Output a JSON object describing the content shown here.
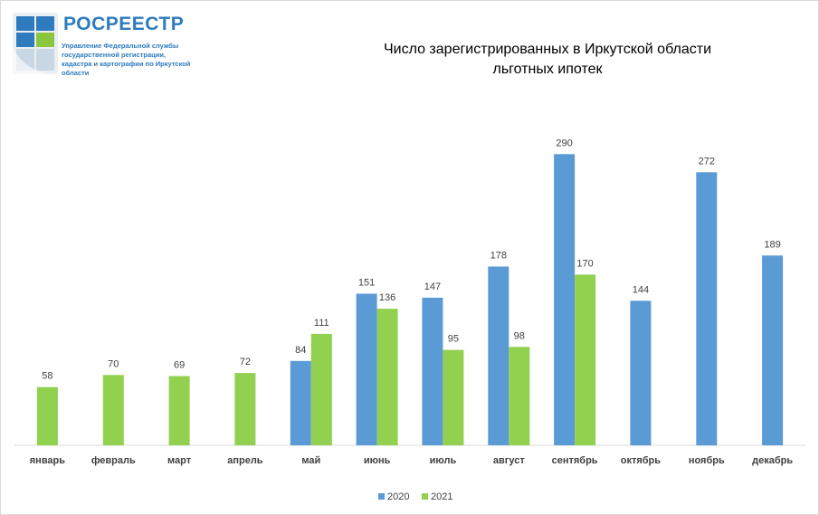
{
  "logo": {
    "name": "РОСРЕЕСТР",
    "sub": "Управление Федеральной службы государственной регистрации, кадастра и картографии по Иркутской области",
    "colors": {
      "blue": "#2e7bbd",
      "green": "#8cc63f"
    }
  },
  "chart_data": {
    "type": "bar",
    "title_line1": "Число зарегистрированных  в Иркутской области",
    "title_line2": "льготных ипотек",
    "categories": [
      "январь",
      "февраль",
      "март",
      "апрель",
      "май",
      "июнь",
      "июль",
      "август",
      "сентябрь",
      "октябрь",
      "ноябрь",
      "декабрь"
    ],
    "series": [
      {
        "name": "2020",
        "color": "#5b9bd5",
        "values": [
          null,
          null,
          null,
          null,
          84,
          151,
          147,
          178,
          290,
          144,
          272,
          189
        ]
      },
      {
        "name": "2021",
        "color": "#92d050",
        "values": [
          58,
          70,
          69,
          72,
          111,
          136,
          95,
          98,
          170,
          null,
          null,
          null
        ]
      }
    ],
    "ylim": [
      0,
      320
    ],
    "grid": false,
    "legend": "bottom"
  }
}
